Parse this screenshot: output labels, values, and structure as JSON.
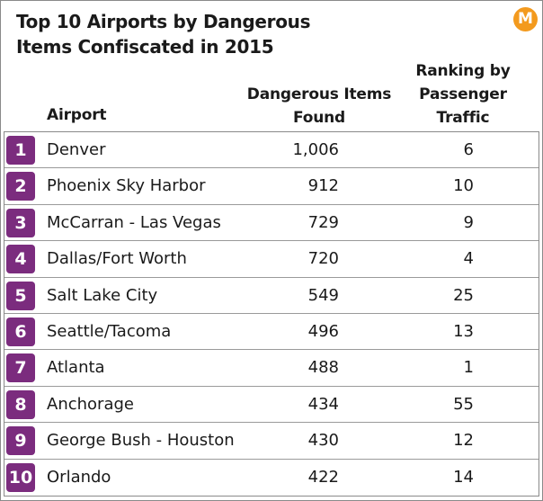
{
  "logo_letter": "M",
  "chart_data": {
    "type": "table",
    "title": "Top 10 Airports by Dangerous Items Confiscated in 2015",
    "columns": {
      "airport": "Airport",
      "items": "Dangerous Items Found",
      "rank": "Ranking by Passenger Traffic"
    },
    "rows": [
      {
        "rank_position": "1",
        "airport": "Denver",
        "items": "1,006",
        "passenger_rank": "6"
      },
      {
        "rank_position": "2",
        "airport": "Phoenix Sky Harbor",
        "items": "912",
        "passenger_rank": "10"
      },
      {
        "rank_position": "3",
        "airport": "McCarran - Las Vegas",
        "items": "729",
        "passenger_rank": "9"
      },
      {
        "rank_position": "4",
        "airport": "Dallas/Fort Worth",
        "items": "720",
        "passenger_rank": "4"
      },
      {
        "rank_position": "5",
        "airport": "Salt Lake City",
        "items": "549",
        "passenger_rank": "25"
      },
      {
        "rank_position": "6",
        "airport": "Seattle/Tacoma",
        "items": "496",
        "passenger_rank": "13"
      },
      {
        "rank_position": "7",
        "airport": "Atlanta",
        "items": "488",
        "passenger_rank": "1"
      },
      {
        "rank_position": "8",
        "airport": "Anchorage",
        "items": "434",
        "passenger_rank": "55"
      },
      {
        "rank_position": "9",
        "airport": "George Bush - Houston",
        "items": "430",
        "passenger_rank": "12"
      },
      {
        "rank_position": "10",
        "airport": "Orlando",
        "items": "422",
        "passenger_rank": "14"
      }
    ],
    "colors": {
      "badge": "#7b2c7e",
      "logo": "#f39a1e"
    }
  }
}
